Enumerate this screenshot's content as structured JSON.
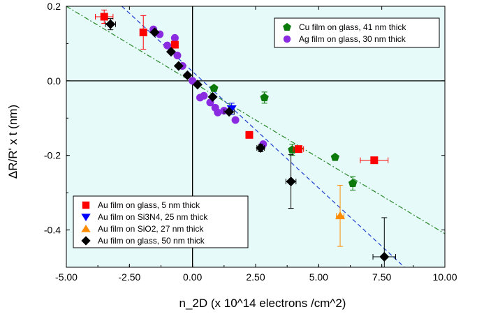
{
  "chart_data": {
    "type": "scatter",
    "title": "",
    "xlabel": "n_2D (x 10^14 electrons /cm^2)",
    "ylabel": "ΔR/R' x t (nm)",
    "xlim": [
      -5,
      10
    ],
    "ylim": [
      -0.5,
      0.2
    ],
    "xticks": [
      -5,
      -2.5,
      0,
      2.5,
      5,
      7.5,
      10
    ],
    "xtick_labels": [
      "-5.00",
      "-2.50",
      "0.00",
      "2.50",
      "5.00",
      "7.50",
      "10.00"
    ],
    "yticks": [
      0.2,
      0,
      -0.2,
      -0.4
    ],
    "ytick_labels": [
      "0.2",
      "0.0",
      "-0.2",
      "-0.4"
    ],
    "background_color": "#e6fafa",
    "reference_lines": [
      {
        "axis": "x",
        "value": 0
      },
      {
        "axis": "y",
        "value": 0
      }
    ],
    "legends": [
      {
        "placement": "top-right",
        "entries": [
          1,
          2
        ]
      },
      {
        "placement": "bottom-left",
        "entries": [
          3,
          4,
          5,
          6
        ]
      }
    ],
    "series": [
      {
        "name": "Cu film on glass, 41 nm thick",
        "marker": "pentagon",
        "color": "#0b7a0b",
        "x": [
          0.85,
          2.85,
          3.95,
          5.65,
          6.35
        ],
        "y": [
          -0.02,
          -0.045,
          -0.185,
          -0.205,
          -0.275
        ],
        "yerr": [
          0,
          0.015,
          0.015,
          0,
          0.018
        ],
        "xerr": [
          0,
          0,
          0,
          0,
          0
        ]
      },
      {
        "name": "Ag film on glass, 30 nm thick",
        "marker": "circle",
        "color": "#8a2be2",
        "x": [
          -1.55,
          -1.3,
          -1.0,
          -0.7,
          -0.6,
          -0.4,
          0.0,
          0.3,
          0.45,
          0.7,
          0.9,
          1.0,
          1.25,
          1.7,
          2.8
        ],
        "y": [
          0.138,
          0.125,
          0.095,
          0.115,
          0.068,
          0.04,
          0.0,
          -0.045,
          -0.04,
          -0.058,
          -0.072,
          -0.085,
          -0.08,
          -0.105,
          -0.17
        ],
        "yerr": [
          0,
          0,
          0,
          0,
          0,
          0,
          0,
          0,
          0,
          0,
          0,
          0,
          0,
          0,
          0
        ],
        "xerr": [
          0,
          0,
          0,
          0,
          0,
          0,
          0,
          0,
          0,
          0,
          0,
          0,
          0,
          0,
          0
        ]
      },
      {
        "name": "Au film on glass, 5 nm thick",
        "marker": "square",
        "color": "#ff0000",
        "x": [
          -3.5,
          -1.95,
          -0.7,
          2.25,
          4.2,
          7.2
        ],
        "y": [
          0.172,
          0.13,
          0.097,
          -0.145,
          -0.183,
          -0.213
        ],
        "yerr": [
          0.018,
          0.045,
          0,
          0,
          0,
          0
        ],
        "xerr": [
          0.35,
          0,
          0,
          0,
          0.2,
          0.55
        ]
      },
      {
        "name": "Au film on Si3N4, 25 nm thick",
        "marker": "triangle-down",
        "color": "#0000ff",
        "x": [
          1.55
        ],
        "y": [
          -0.075
        ],
        "yerr": [
          0.015
        ],
        "xerr": [
          0
        ]
      },
      {
        "name": "Au film on SiO2, 27 nm thick",
        "marker": "triangle-up",
        "color": "#ff8c00",
        "x": [
          5.85
        ],
        "y": [
          -0.362
        ],
        "yerr": [
          0.082
        ],
        "xerr": [
          0.15
        ]
      },
      {
        "name": "Au film on glass, 50 nm thick",
        "marker": "diamond",
        "color": "#000000",
        "x": [
          -3.25,
          -1.5,
          -0.85,
          -0.55,
          -0.2,
          0.2,
          0.8,
          1.45,
          2.7,
          3.9,
          7.6
        ],
        "y": [
          0.152,
          0.13,
          0.078,
          0.04,
          0.015,
          -0.01,
          -0.043,
          -0.083,
          -0.18,
          -0.27,
          -0.472
        ],
        "yerr": [
          0.015,
          0,
          0,
          0,
          0,
          0,
          0,
          0,
          0.01,
          0.072,
          0.105
        ],
        "xerr": [
          0.2,
          0,
          0,
          0,
          0,
          0,
          0,
          0.2,
          0.15,
          0.2,
          0.45
        ]
      }
    ],
    "fit_lines": [
      {
        "style": "dash",
        "color": "#1f3fcf",
        "x": [
          -2.8,
          8.4
        ],
        "y": [
          0.2,
          -0.5
        ]
      },
      {
        "style": "dash-dot",
        "color": "#2a8a2a",
        "x": [
          -5,
          10
        ],
        "y": [
          0.2,
          -0.41
        ]
      }
    ]
  }
}
